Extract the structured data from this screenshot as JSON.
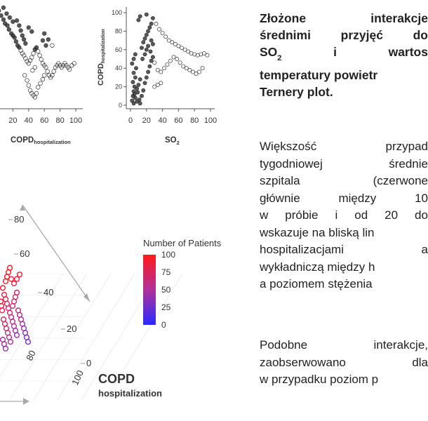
{
  "heading": {
    "line1": [
      "Złożone",
      "interakcje"
    ],
    "line2": [
      "średnimi",
      "przyjęć",
      "do"
    ],
    "line3_a": "SO",
    "line3_sub": "2",
    "line3_b": [
      "i",
      "wartos"
    ],
    "line4": "temperatury powietr",
    "line5": "Ternery plot."
  },
  "paragraph1": [
    [
      "Większość",
      "przypad"
    ],
    [
      "tygodniowej",
      "średnie"
    ],
    [
      "szpitala",
      "(czerwone"
    ],
    [
      "głównie",
      "między",
      "10"
    ],
    [
      "w",
      "próbie",
      "i",
      "od",
      "20",
      "do"
    ],
    [
      "wskazuje na bliską lin"
    ],
    [
      "hospitalizacjami",
      "a"
    ],
    [
      "wykładniczą między h"
    ],
    [
      "a poziomem stężenia"
    ]
  ],
  "paragraph2": [
    [
      "Podobne",
      "interakcje,"
    ],
    [
      "zaobserwowano",
      "dla"
    ],
    [
      "w przypadku poziom p"
    ]
  ],
  "scatter_left": {
    "xlabel_main": "COPD",
    "xlabel_sub": "hospitalization",
    "x_ticks": [
      "20",
      "40",
      "60",
      "80",
      "100"
    ]
  },
  "scatter_right": {
    "xlabel_main": "SO",
    "xlabel_sub": "2",
    "ylabel_main": "COPD",
    "ylabel_sub": "hospitalization",
    "x_ticks": [
      "0",
      "20",
      "40",
      "60",
      "80",
      "100"
    ],
    "y_ticks": [
      "0",
      "20",
      "40",
      "60",
      "80",
      "100"
    ]
  },
  "ternary": {
    "right_ticks": [
      "80",
      "60",
      "40",
      "20",
      "0"
    ],
    "bottom_ticks": [
      "80",
      "100"
    ],
    "axis_label_main": "COPD",
    "axis_label_sub": "hospitalization"
  },
  "legend": {
    "title": "Number of Patients",
    "ticks": [
      "100",
      "75",
      "50",
      "25",
      "0"
    ],
    "color_high": "#ff1a1a",
    "color_mid": "#b0309a",
    "color_low": "#2a2aff"
  },
  "chart_data": [
    {
      "type": "scatter",
      "xlabel": "COPD hospitalization",
      "xlim": [
        0,
        100
      ],
      "x_ticks": [
        20,
        40,
        60,
        80,
        100
      ],
      "points": [
        [
          2,
          95
        ],
        [
          5,
          90
        ],
        [
          8,
          86
        ],
        [
          10,
          82
        ],
        [
          13,
          80
        ],
        [
          15,
          76
        ],
        [
          18,
          72
        ],
        [
          20,
          70
        ],
        [
          22,
          68
        ],
        [
          24,
          64
        ],
        [
          26,
          60
        ],
        [
          28,
          58
        ],
        [
          30,
          55
        ],
        [
          32,
          52
        ],
        [
          34,
          50
        ],
        [
          36,
          47
        ],
        [
          38,
          44
        ],
        [
          40,
          42
        ],
        [
          42,
          45
        ],
        [
          44,
          48
        ],
        [
          46,
          52
        ],
        [
          48,
          56
        ],
        [
          50,
          58
        ],
        [
          52,
          54
        ],
        [
          54,
          50
        ],
        [
          56,
          46
        ],
        [
          58,
          42
        ],
        [
          60,
          40
        ],
        [
          62,
          38
        ],
        [
          64,
          34
        ],
        [
          66,
          30
        ],
        [
          68,
          28
        ],
        [
          70,
          30
        ],
        [
          72,
          34
        ],
        [
          74,
          38
        ],
        [
          76,
          40
        ],
        [
          78,
          42
        ],
        [
          80,
          40
        ],
        [
          82,
          38
        ],
        [
          84,
          40
        ],
        [
          86,
          42
        ],
        [
          88,
          40
        ],
        [
          90,
          38
        ],
        [
          92,
          36
        ],
        [
          95,
          40
        ],
        [
          98,
          42
        ],
        [
          35,
          30
        ],
        [
          38,
          25
        ],
        [
          40,
          20
        ],
        [
          42,
          15
        ],
        [
          44,
          12
        ],
        [
          46,
          10
        ],
        [
          48,
          8
        ],
        [
          50,
          12
        ],
        [
          52,
          18
        ],
        [
          55,
          22
        ],
        [
          58,
          26
        ],
        [
          60,
          30
        ],
        [
          45,
          35
        ],
        [
          48,
          38
        ],
        [
          25,
          85
        ],
        [
          28,
          80
        ],
        [
          30,
          75
        ],
        [
          32,
          70
        ],
        [
          34,
          66
        ],
        [
          36,
          62
        ],
        [
          40,
          78
        ],
        [
          44,
          74
        ],
        [
          12,
          92
        ],
        [
          16,
          88
        ],
        [
          20,
          84
        ],
        [
          8,
          98
        ],
        [
          60,
          72
        ],
        [
          65,
          66
        ],
        [
          70,
          60
        ],
        [
          58,
          65
        ],
        [
          62,
          60
        ]
      ]
    },
    {
      "type": "scatter",
      "xlabel": "SO2",
      "ylabel": "COPD hospitalization",
      "xlim": [
        0,
        100
      ],
      "ylim": [
        0,
        100
      ],
      "x_ticks": [
        0,
        20,
        40,
        60,
        80,
        100
      ],
      "y_ticks": [
        0,
        20,
        40,
        60,
        80,
        100
      ],
      "points": [
        [
          2,
          5
        ],
        [
          3,
          10
        ],
        [
          4,
          15
        ],
        [
          5,
          20
        ],
        [
          3,
          25
        ],
        [
          6,
          30
        ],
        [
          4,
          35
        ],
        [
          7,
          40
        ],
        [
          5,
          12
        ],
        [
          8,
          18
        ],
        [
          10,
          22
        ],
        [
          12,
          28
        ],
        [
          6,
          8
        ],
        [
          9,
          14
        ],
        [
          11,
          6
        ],
        [
          14,
          10
        ],
        [
          16,
          16
        ],
        [
          18,
          24
        ],
        [
          20,
          30
        ],
        [
          22,
          36
        ],
        [
          24,
          42
        ],
        [
          26,
          48
        ],
        [
          15,
          50
        ],
        [
          18,
          55
        ],
        [
          20,
          60
        ],
        [
          22,
          64
        ],
        [
          25,
          58
        ],
        [
          28,
          52
        ],
        [
          30,
          46
        ],
        [
          14,
          62
        ],
        [
          16,
          68
        ],
        [
          18,
          72
        ],
        [
          20,
          76
        ],
        [
          22,
          80
        ],
        [
          24,
          84
        ],
        [
          26,
          88
        ],
        [
          10,
          92
        ],
        [
          12,
          96
        ],
        [
          20,
          98
        ],
        [
          28,
          94
        ],
        [
          32,
          88
        ],
        [
          36,
          82
        ],
        [
          40,
          78
        ],
        [
          44,
          74
        ],
        [
          48,
          70
        ],
        [
          52,
          68
        ],
        [
          56,
          66
        ],
        [
          60,
          64
        ],
        [
          64,
          62
        ],
        [
          68,
          60
        ],
        [
          72,
          58
        ],
        [
          76,
          56
        ],
        [
          80,
          55
        ],
        [
          84,
          54
        ],
        [
          88,
          55
        ],
        [
          92,
          56
        ],
        [
          96,
          54
        ],
        [
          34,
          38
        ],
        [
          38,
          36
        ],
        [
          42,
          40
        ],
        [
          46,
          44
        ],
        [
          50,
          48
        ],
        [
          54,
          52
        ],
        [
          58,
          50
        ],
        [
          62,
          46
        ],
        [
          66,
          42
        ],
        [
          70,
          40
        ],
        [
          74,
          38
        ],
        [
          78,
          36
        ],
        [
          82,
          34
        ],
        [
          86,
          36
        ],
        [
          90,
          40
        ],
        [
          30,
          20
        ],
        [
          34,
          22
        ],
        [
          38,
          24
        ],
        [
          4,
          2
        ],
        [
          8,
          4
        ],
        [
          12,
          2
        ],
        [
          2,
          45
        ],
        [
          4,
          50
        ],
        [
          6,
          55
        ],
        [
          26,
          70
        ],
        [
          28,
          66
        ]
      ]
    },
    {
      "type": "scatter",
      "subtype": "ternary",
      "axis_label": "COPD hospitalization",
      "right_axis_ticks": [
        80,
        60,
        40,
        20,
        0
      ],
      "bottom_axis_ticks": [
        80,
        100
      ],
      "color_variable": "Number of Patients",
      "color_range": [
        0,
        100
      ],
      "legend_ticks": [
        100,
        75,
        50,
        25,
        0
      ],
      "points": [
        [
          4,
          56,
          90
        ],
        [
          6,
          50,
          85
        ],
        [
          8,
          46,
          80
        ],
        [
          10,
          42,
          75
        ],
        [
          12,
          38,
          70
        ],
        [
          14,
          34,
          65
        ],
        [
          16,
          30,
          60
        ],
        [
          18,
          26,
          55
        ],
        [
          20,
          22,
          50
        ],
        [
          22,
          18,
          45
        ],
        [
          24,
          14,
          40
        ],
        [
          5,
          28,
          72
        ],
        [
          7,
          24,
          68
        ],
        [
          9,
          20,
          64
        ],
        [
          11,
          16,
          60
        ],
        [
          13,
          12,
          55
        ],
        [
          15,
          8,
          50
        ],
        [
          3,
          36,
          80
        ],
        [
          2,
          40,
          85
        ],
        [
          1,
          44,
          88
        ],
        [
          18,
          40,
          62
        ],
        [
          20,
          44,
          66
        ],
        [
          22,
          48,
          70
        ],
        [
          24,
          52,
          74
        ],
        [
          26,
          36,
          58
        ],
        [
          28,
          32,
          54
        ],
        [
          30,
          28,
          50
        ],
        [
          32,
          24,
          46
        ],
        [
          34,
          20,
          42
        ],
        [
          36,
          16,
          38
        ],
        [
          38,
          12,
          34
        ],
        [
          40,
          8,
          30
        ],
        [
          8,
          62,
          92
        ],
        [
          10,
          66,
          95
        ],
        [
          12,
          70,
          97
        ],
        [
          14,
          74,
          99
        ],
        [
          16,
          64,
          90
        ],
        [
          20,
          60,
          86
        ],
        [
          24,
          64,
          88
        ],
        [
          28,
          68,
          90
        ],
        [
          4,
          10,
          48
        ],
        [
          6,
          6,
          44
        ],
        [
          8,
          2,
          40
        ]
      ]
    }
  ]
}
